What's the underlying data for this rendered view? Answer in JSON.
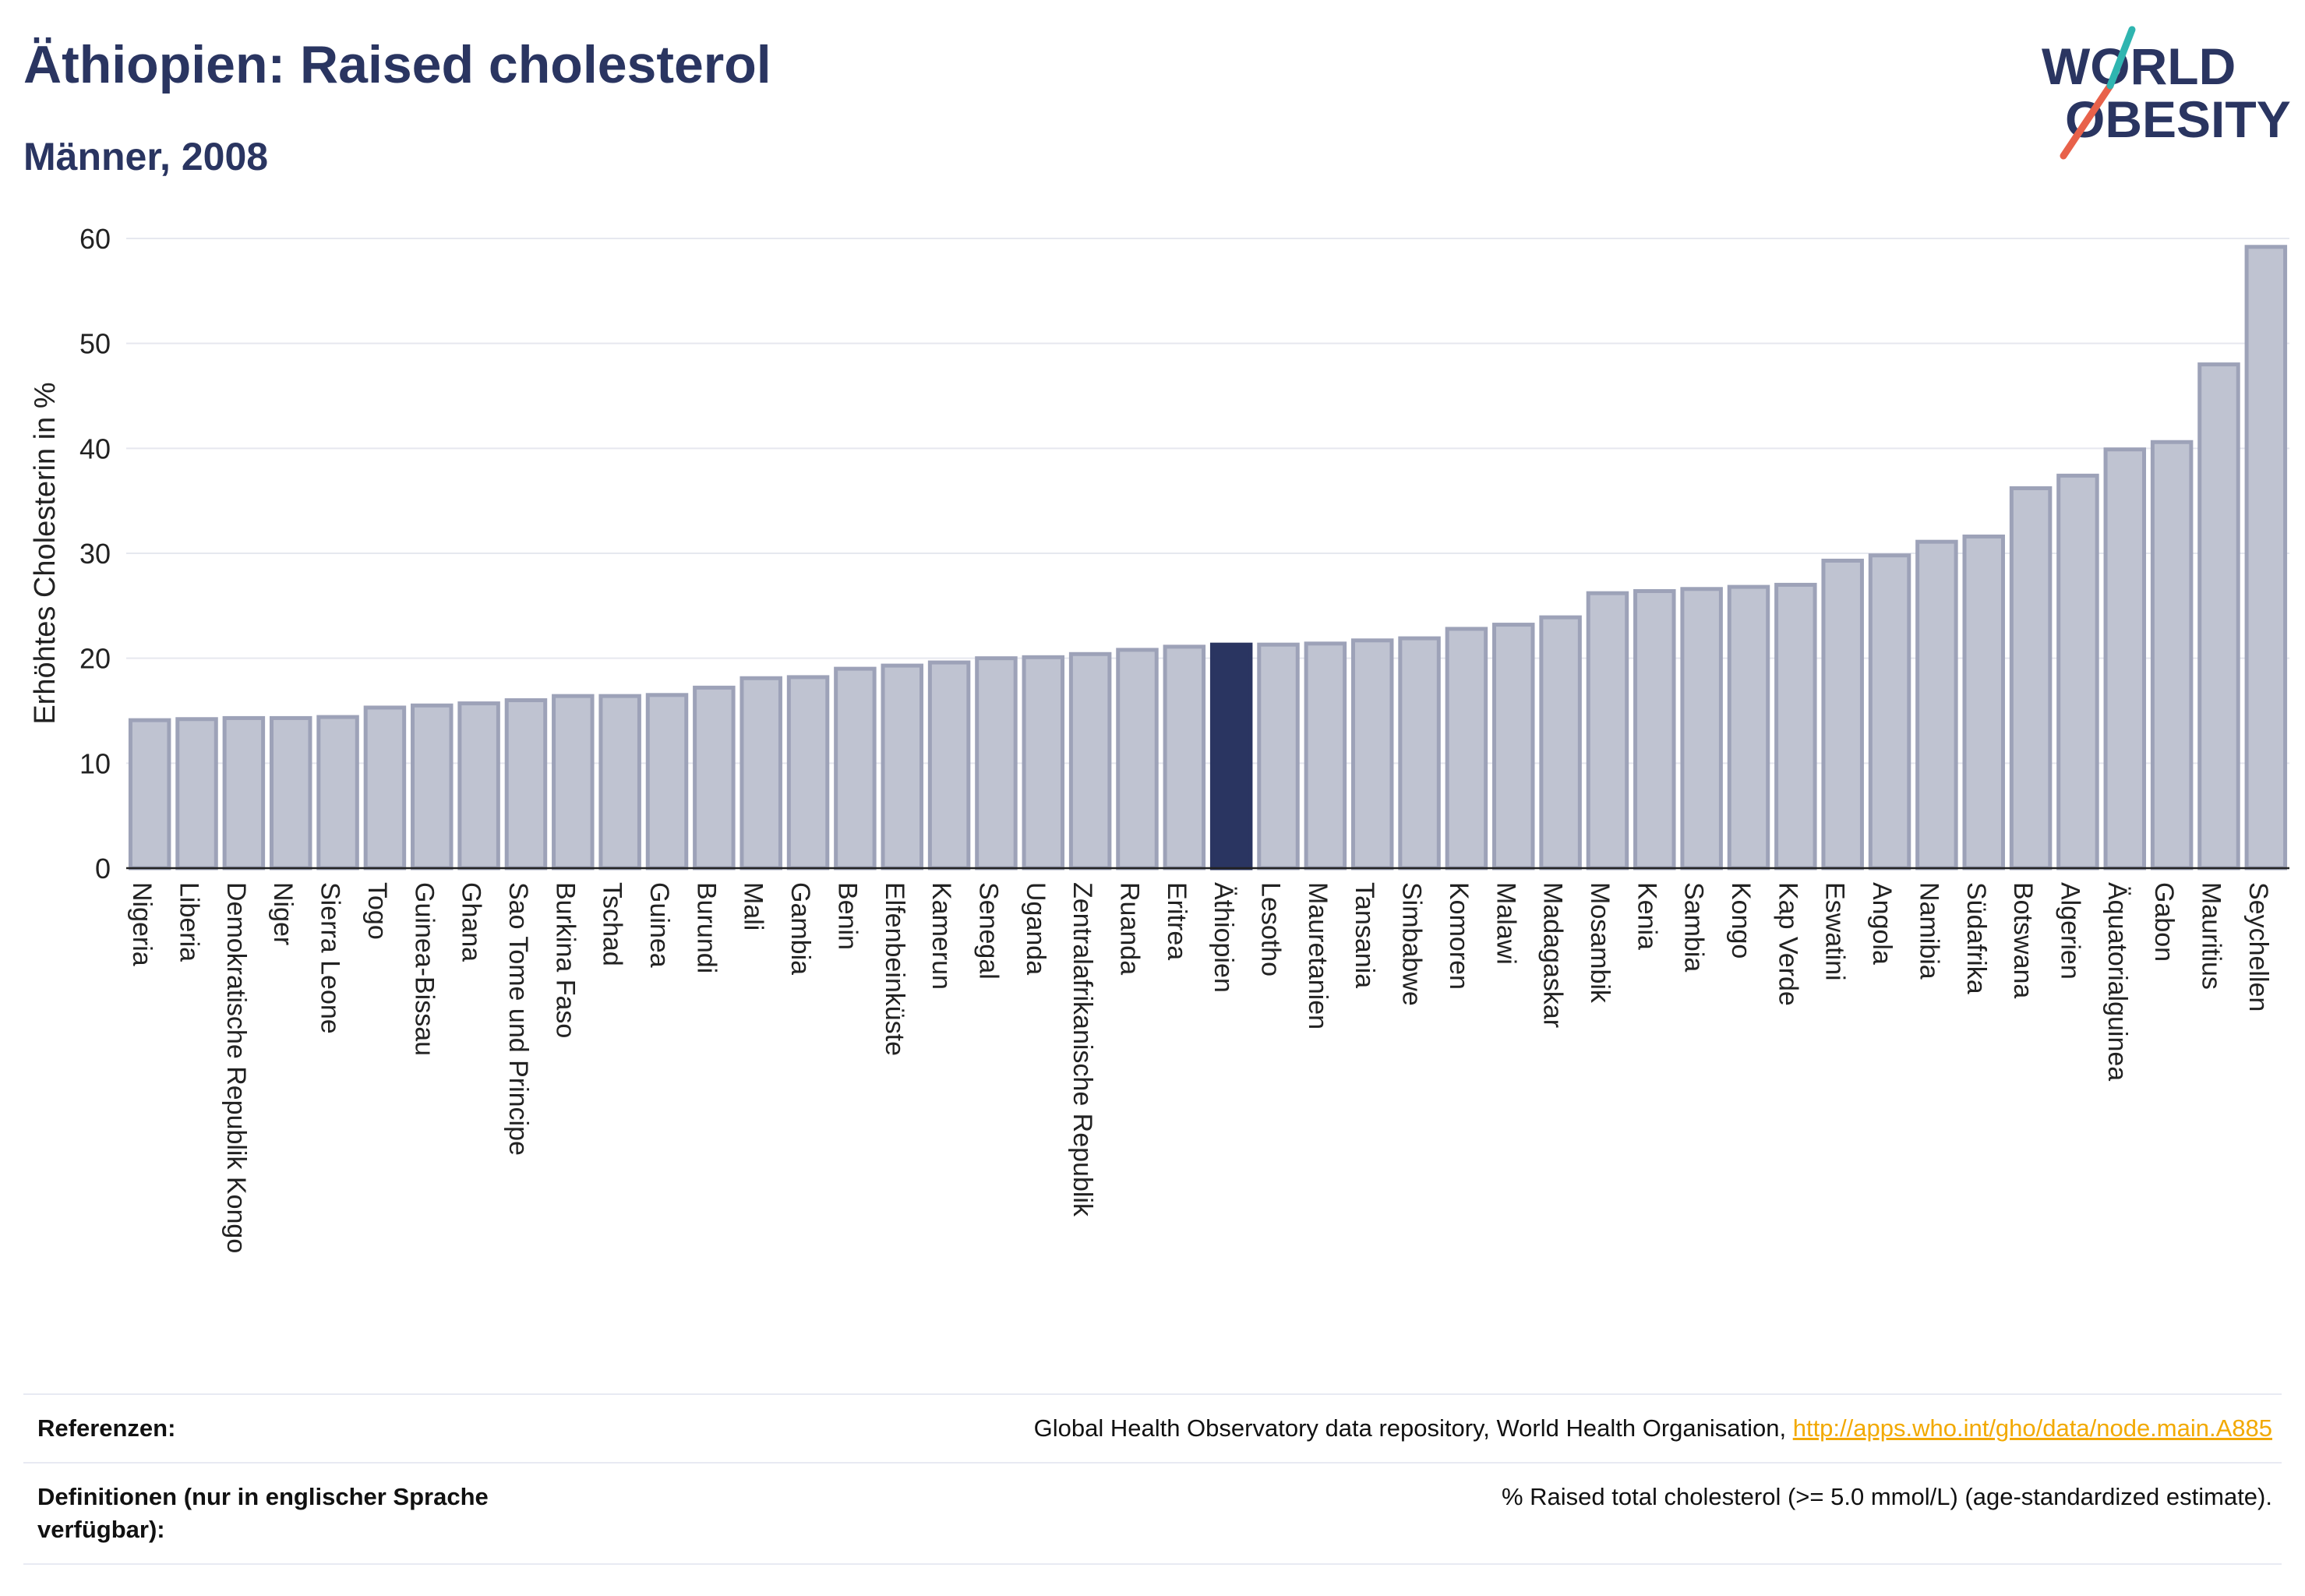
{
  "header": {
    "title": "Äthiopien: Raised cholesterol",
    "subtitle": "Männer, 2008"
  },
  "logo": {
    "line1": "WORLD",
    "line2": "OBESITY",
    "text_color": "#2a3561",
    "slash_colors": [
      "#e8614a",
      "#2fb5b0"
    ]
  },
  "colors": {
    "bar": "#bfc3d1",
    "bar_border": "#9da2b8",
    "highlight": "#2a3561",
    "grid": "#e6e8ef",
    "text": "#2a3561"
  },
  "chart_data": {
    "type": "bar",
    "ylabel": "Erhöhtes Cholesterin in %",
    "ylim": [
      0,
      60
    ],
    "yticks": [
      0,
      10,
      20,
      30,
      40,
      50,
      60
    ],
    "highlight": "Äthiopien",
    "categories": [
      "Nigeria",
      "Liberia",
      "Demokratische Republik Kongo",
      "Niger",
      "Sierra Leone",
      "Togo",
      "Guinea-Bissau",
      "Ghana",
      "Sao Tome und Principe",
      "Burkina Faso",
      "Tschad",
      "Guinea",
      "Burundi",
      "Mali",
      "Gambia",
      "Benin",
      "Elfenbeinküste",
      "Kamerun",
      "Senegal",
      "Uganda",
      "Zentralafrikanische Republik",
      "Ruanda",
      "Eritrea",
      "Äthiopien",
      "Lesotho",
      "Mauretanien",
      "Tansania",
      "Simbabwe",
      "Komoren",
      "Malawi",
      "Madagaskar",
      "Mosambik",
      "Kenia",
      "Sambia",
      "Kongo",
      "Kap Verde",
      "Eswatini",
      "Angola",
      "Namibia",
      "Südafrika",
      "Botswana",
      "Algerien",
      "Äquatorialguinea",
      "Gabon",
      "Mauritius",
      "Seychellen"
    ],
    "values": [
      14.1,
      14.2,
      14.3,
      14.3,
      14.4,
      15.3,
      15.5,
      15.7,
      16.0,
      16.4,
      16.4,
      16.5,
      17.2,
      18.1,
      18.2,
      19.0,
      19.3,
      19.6,
      20.0,
      20.1,
      20.4,
      20.8,
      21.1,
      21.3,
      21.3,
      21.4,
      21.7,
      21.9,
      22.8,
      23.2,
      23.9,
      26.2,
      26.4,
      26.6,
      26.8,
      27.0,
      29.3,
      29.8,
      31.1,
      31.6,
      36.2,
      37.4,
      39.9,
      40.6,
      48.0,
      59.2
    ]
  },
  "footer": {
    "references_label": "Referenzen:",
    "references_text": "Global Health Observatory data repository, World Health Organisation,",
    "references_link": "http://apps.who.int/gho/data/node.main.A885",
    "definitions_label": "Definitionen (nur in englischer Sprache verfügbar):",
    "definitions_text": "% Raised total cholesterol (>= 5.0 mmol/L) (age-standardized estimate)."
  }
}
